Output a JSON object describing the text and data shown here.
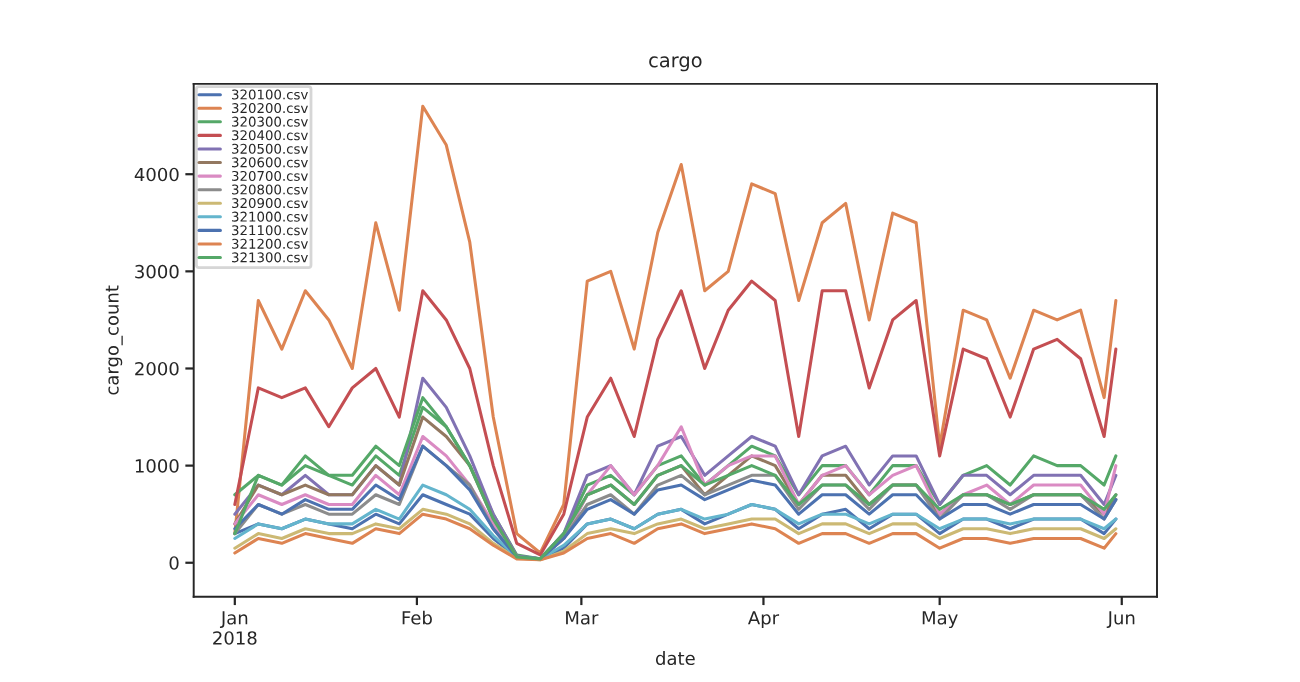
{
  "chart_data": {
    "type": "line",
    "title": "cargo",
    "xlabel": "date",
    "ylabel": "cargo_count",
    "x": [
      "2018-01-01",
      "2018-01-05",
      "2018-01-09",
      "2018-01-13",
      "2018-01-17",
      "2018-01-21",
      "2018-01-25",
      "2018-01-29",
      "2018-02-02",
      "2018-02-06",
      "2018-02-10",
      "2018-02-14",
      "2018-02-18",
      "2018-02-22",
      "2018-02-26",
      "2018-03-02",
      "2018-03-06",
      "2018-03-10",
      "2018-03-14",
      "2018-03-18",
      "2018-03-22",
      "2018-03-26",
      "2018-03-30",
      "2018-04-03",
      "2018-04-07",
      "2018-04-11",
      "2018-04-15",
      "2018-04-19",
      "2018-04-23",
      "2018-04-27",
      "2018-05-01",
      "2018-05-05",
      "2018-05-09",
      "2018-05-13",
      "2018-05-17",
      "2018-05-21",
      "2018-05-25",
      "2018-05-29",
      "2018-05-31"
    ],
    "series": [
      {
        "name": "320100.csv",
        "color": "#4c72b0",
        "values": [
          300,
          400,
          350,
          450,
          400,
          350,
          500,
          400,
          700,
          600,
          500,
          250,
          60,
          40,
          150,
          400,
          450,
          350,
          500,
          550,
          400,
          500,
          600,
          550,
          350,
          500,
          550,
          350,
          500,
          500,
          300,
          450,
          450,
          350,
          450,
          450,
          450,
          300,
          450
        ]
      },
      {
        "name": "320200.csv",
        "color": "#dd8452",
        "values": [
          300,
          2700,
          2200,
          2800,
          2500,
          2000,
          3500,
          2600,
          4700,
          4300,
          3300,
          1500,
          300,
          100,
          600,
          2900,
          3000,
          2200,
          3400,
          4100,
          2800,
          3000,
          3900,
          3800,
          2700,
          3500,
          3700,
          2500,
          3600,
          3500,
          1200,
          2600,
          2500,
          1900,
          2600,
          2500,
          2600,
          1700,
          2700
        ]
      },
      {
        "name": "320300.csv",
        "color": "#55a868",
        "values": [
          700,
          900,
          800,
          1000,
          900,
          800,
          1100,
          900,
          1600,
          1400,
          1000,
          500,
          80,
          40,
          300,
          800,
          900,
          700,
          1000,
          1100,
          800,
          1000,
          1200,
          1100,
          700,
          1000,
          1000,
          700,
          1000,
          1000,
          600,
          900,
          1000,
          800,
          1100,
          1000,
          1000,
          800,
          1100
        ]
      },
      {
        "name": "320400.csv",
        "color": "#c44e52",
        "values": [
          600,
          1800,
          1700,
          1800,
          1400,
          1800,
          2000,
          1500,
          2800,
          2500,
          2000,
          1000,
          200,
          80,
          500,
          1500,
          1900,
          1300,
          2300,
          2800,
          2000,
          2600,
          2900,
          2700,
          1300,
          2800,
          2800,
          1800,
          2500,
          2700,
          1100,
          2200,
          2100,
          1500,
          2200,
          2300,
          2100,
          1300,
          2200
        ]
      },
      {
        "name": "320500.csv",
        "color": "#8172b3",
        "values": [
          500,
          800,
          700,
          900,
          700,
          700,
          1000,
          800,
          1900,
          1600,
          1100,
          500,
          70,
          40,
          300,
          900,
          1000,
          700,
          1200,
          1300,
          900,
          1100,
          1300,
          1200,
          700,
          1100,
          1200,
          800,
          1100,
          1100,
          600,
          900,
          900,
          700,
          900,
          900,
          900,
          600,
          900
        ]
      },
      {
        "name": "320600.csv",
        "color": "#937860",
        "values": [
          400,
          800,
          700,
          800,
          700,
          700,
          1000,
          800,
          1500,
          1300,
          1000,
          450,
          60,
          40,
          250,
          700,
          800,
          600,
          900,
          1000,
          700,
          900,
          1100,
          1000,
          600,
          900,
          900,
          600,
          800,
          800,
          500,
          700,
          700,
          600,
          700,
          700,
          700,
          500,
          700
        ]
      },
      {
        "name": "320700.csv",
        "color": "#da8bc3",
        "values": [
          400,
          700,
          600,
          700,
          600,
          600,
          900,
          700,
          1300,
          1100,
          800,
          400,
          60,
          40,
          250,
          700,
          1000,
          700,
          1000,
          1400,
          800,
          1000,
          1100,
          1100,
          600,
          900,
          1000,
          700,
          900,
          1000,
          500,
          700,
          800,
          600,
          800,
          800,
          800,
          500,
          1000
        ]
      },
      {
        "name": "320800.csv",
        "color": "#8c8c8c",
        "values": [
          300,
          600,
          500,
          600,
          500,
          500,
          700,
          600,
          1200,
          1000,
          800,
          350,
          60,
          40,
          250,
          600,
          700,
          500,
          800,
          900,
          700,
          800,
          900,
          900,
          550,
          800,
          800,
          550,
          800,
          800,
          450,
          700,
          700,
          550,
          700,
          700,
          700,
          450,
          650
        ]
      },
      {
        "name": "320900.csv",
        "color": "#ccb974",
        "values": [
          150,
          300,
          250,
          350,
          300,
          300,
          400,
          350,
          550,
          500,
          400,
          200,
          50,
          30,
          120,
          300,
          350,
          300,
          400,
          450,
          350,
          400,
          450,
          450,
          300,
          400,
          400,
          300,
          400,
          400,
          250,
          350,
          350,
          300,
          350,
          350,
          350,
          250,
          350
        ]
      },
      {
        "name": "321000.csv",
        "color": "#64b5cd",
        "values": [
          250,
          400,
          350,
          450,
          400,
          400,
          550,
          450,
          800,
          700,
          550,
          280,
          60,
          40,
          180,
          400,
          450,
          350,
          500,
          550,
          450,
          500,
          600,
          550,
          400,
          500,
          500,
          400,
          500,
          500,
          350,
          450,
          450,
          400,
          450,
          450,
          450,
          350,
          450
        ]
      },
      {
        "name": "321100.csv",
        "color": "#4c72b0",
        "values": [
          350,
          600,
          500,
          650,
          550,
          550,
          800,
          650,
          1200,
          1000,
          750,
          350,
          60,
          40,
          250,
          550,
          650,
          500,
          750,
          800,
          650,
          750,
          850,
          800,
          500,
          700,
          700,
          500,
          700,
          700,
          450,
          600,
          600,
          500,
          600,
          600,
          600,
          450,
          650
        ]
      },
      {
        "name": "321200.csv",
        "color": "#dd8452",
        "values": [
          100,
          250,
          200,
          300,
          250,
          200,
          350,
          300,
          500,
          450,
          350,
          180,
          40,
          30,
          100,
          250,
          300,
          200,
          350,
          400,
          300,
          350,
          400,
          350,
          200,
          300,
          300,
          200,
          300,
          300,
          150,
          250,
          250,
          200,
          250,
          250,
          250,
          150,
          300
        ]
      },
      {
        "name": "321300.csv",
        "color": "#55a868",
        "values": [
          300,
          900,
          800,
          1100,
          900,
          900,
          1200,
          1000,
          1700,
          1400,
          1000,
          450,
          60,
          40,
          300,
          700,
          800,
          600,
          900,
          1000,
          800,
          900,
          1000,
          900,
          600,
          800,
          800,
          600,
          800,
          800,
          550,
          700,
          700,
          600,
          700,
          700,
          700,
          550,
          700
        ]
      }
    ],
    "xlim": [
      "2017-12-25",
      "2018-06-07"
    ],
    "xticks": [
      {
        "value": "2018-01-01",
        "label": "Jan\n2018"
      },
      {
        "value": "2018-02-01",
        "label": "Feb"
      },
      {
        "value": "2018-03-01",
        "label": "Mar"
      },
      {
        "value": "2018-04-01",
        "label": "Apr"
      },
      {
        "value": "2018-05-01",
        "label": "May"
      },
      {
        "value": "2018-06-01",
        "label": "Jun"
      }
    ],
    "ylim": [
      -350,
      4930
    ],
    "yticks": [
      0,
      1000,
      2000,
      3000,
      4000
    ],
    "grid": false,
    "legend": "top left",
    "marker": "none",
    "line_style": "solid"
  }
}
